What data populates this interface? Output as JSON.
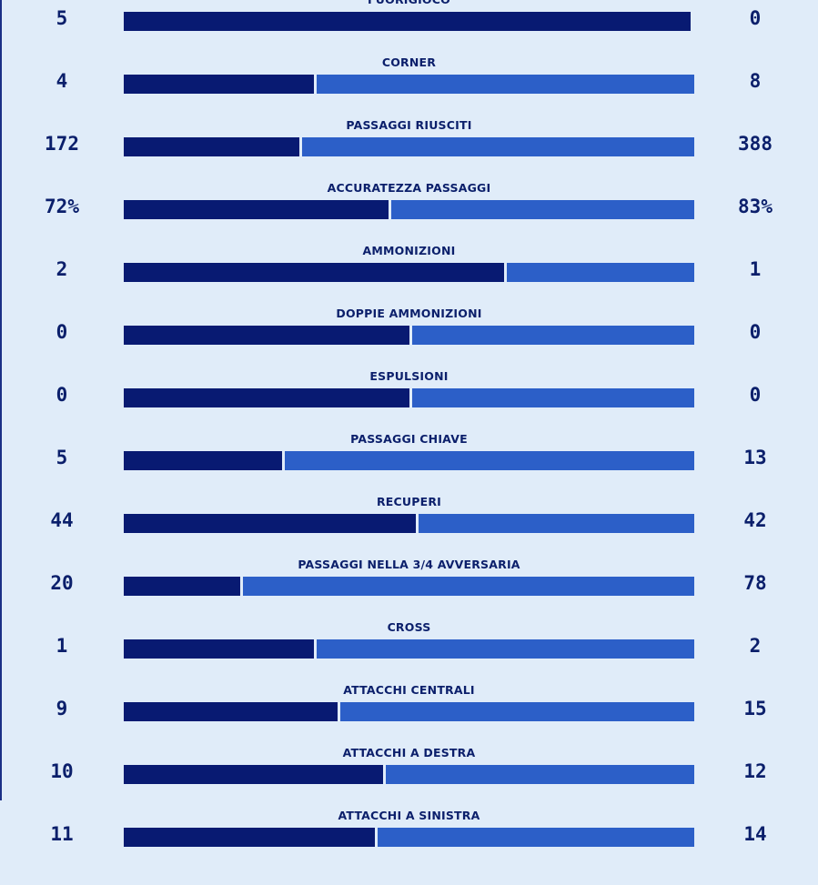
{
  "colors": {
    "background": "#e0ecf9",
    "text": "#0b1f6b",
    "home_bar": "#081a72",
    "away_bar": "#2c5fc8"
  },
  "stats": [
    {
      "label": "FUORIGIOCO",
      "home": "5",
      "away": "0",
      "home_share": 1.0
    },
    {
      "label": "CORNER",
      "home": "4",
      "away": "8",
      "home_share": 0.3333
    },
    {
      "label": "PASSAGGI RIUSCITI",
      "home": "172",
      "away": "388",
      "home_share": 0.3071
    },
    {
      "label": "ACCURATEZZA PASSAGGI",
      "home": "72%",
      "away": "83%",
      "home_share": 0.4645
    },
    {
      "label": "AMMONIZIONI",
      "home": "2",
      "away": "1",
      "home_share": 0.6667
    },
    {
      "label": "DOPPIE AMMONIZIONI",
      "home": "0",
      "away": "0",
      "home_share": 0.5
    },
    {
      "label": "ESPULSIONI",
      "home": "0",
      "away": "0",
      "home_share": 0.5
    },
    {
      "label": "PASSAGGI CHIAVE",
      "home": "5",
      "away": "13",
      "home_share": 0.2778
    },
    {
      "label": "RECUPERI",
      "home": "44",
      "away": "42",
      "home_share": 0.5116
    },
    {
      "label": "PASSAGGI NELLA 3/4 AVVERSARIA",
      "home": "20",
      "away": "78",
      "home_share": 0.2041
    },
    {
      "label": "CROSS",
      "home": "1",
      "away": "2",
      "home_share": 0.3333
    },
    {
      "label": "ATTACCHI CENTRALI",
      "home": "9",
      "away": "15",
      "home_share": 0.375
    },
    {
      "label": "ATTACCHI A DESTRA",
      "home": "10",
      "away": "12",
      "home_share": 0.4545
    },
    {
      "label": "ATTACCHI A SINISTRA",
      "home": "11",
      "away": "14",
      "home_share": 0.44
    }
  ]
}
